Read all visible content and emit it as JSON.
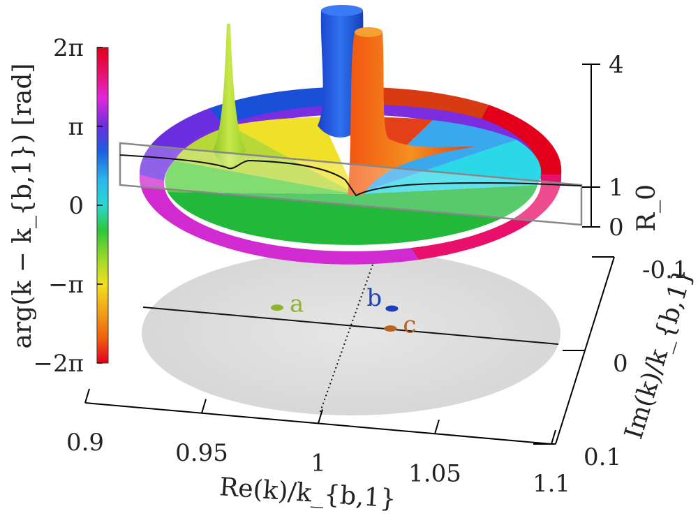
{
  "chart_data": {
    "type": "surface3d",
    "colorbar": {
      "label": "arg(k − k_{b,1}) [rad]",
      "ticks": [
        "2π",
        "π",
        "0",
        "−π",
        "−2π"
      ],
      "tick_values": [
        6.2832,
        3.1416,
        0,
        -3.1416,
        -6.2832
      ],
      "range": [
        -6.2832,
        6.2832
      ]
    },
    "x_axis": {
      "label": "Re(k)/k_{b,1}",
      "ticks": [
        "0.9",
        "0.95",
        "1",
        "1.05",
        "1.1"
      ],
      "tick_values": [
        0.9,
        0.95,
        1.0,
        1.05,
        1.1
      ],
      "range": [
        0.9,
        1.1
      ]
    },
    "y_axis": {
      "label": "Im(k)/k_{b,1}",
      "ticks": [
        "-0.1",
        "0",
        "0.1"
      ],
      "tick_values": [
        -0.1,
        0,
        0.1
      ],
      "range": [
        -0.1,
        0.1
      ]
    },
    "z_axis": {
      "label": "R_0",
      "ticks": [
        "4",
        "1",
        "0"
      ],
      "tick_values": [
        4,
        1,
        0
      ],
      "range": [
        0,
        4
      ]
    },
    "points": [
      {
        "label": "a",
        "re": 0.962,
        "im": -0.01,
        "color": "#8fb32a"
      },
      {
        "label": "b",
        "re": 1.012,
        "im": -0.028,
        "color": "#1f3fb8"
      },
      {
        "label": "c",
        "re": 1.022,
        "im": 0.012,
        "color": "#b8651f"
      }
    ],
    "colors": {
      "red": "#e3001b",
      "orange": "#f07a10",
      "yellow": "#f2e020",
      "green": "#2ec63a",
      "cyan": "#2ad8e8",
      "blue": "#1d5fe0",
      "violet": "#7a2ee0",
      "magenta": "#e028d8"
    }
  }
}
